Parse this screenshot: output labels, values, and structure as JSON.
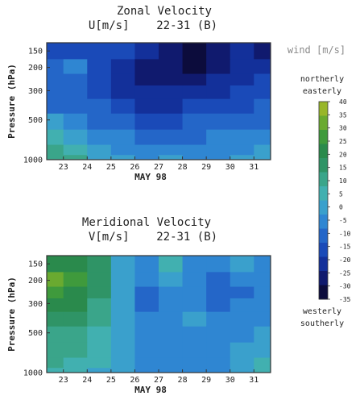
{
  "colors": {
    "scale": [
      "#0c0c3c",
      "#101a6e",
      "#13309a",
      "#1a4ab8",
      "#2466c8",
      "#2f86d2",
      "#3aa0cc",
      "#41b0b0",
      "#3aa58a",
      "#2f9466",
      "#2a8a4c",
      "#3f9a3c",
      "#6aaa30",
      "#98b62a"
    ],
    "border": "#333333",
    "contour": "#1a1a1a"
  },
  "legend": {
    "title": "wind [m/s]",
    "top_labels": [
      "northerly",
      "easterly"
    ],
    "bottom_labels": [
      "westerly",
      "southerly"
    ],
    "ticks": [
      "40",
      "35",
      "30",
      "25",
      "20",
      "15",
      "10",
      "5",
      "0",
      "-5",
      "-10",
      "-15",
      "-20",
      "-25",
      "-30",
      "-35"
    ]
  },
  "chart_data": [
    {
      "type": "heatmap",
      "title_line1": "Zonal Velocity",
      "title_line2": "U[m/s]    22-31 (B)",
      "xlabel": "MAY 98",
      "ylabel": "Pressure (hPa)",
      "x_ticks": [
        "23",
        "24",
        "25",
        "26",
        "27",
        "28",
        "29",
        "30",
        "31"
      ],
      "y_ticks": [
        "150",
        "200",
        "300",
        "500",
        "1000"
      ],
      "x_range": [
        22.3,
        31.7
      ],
      "y_scale": "log",
      "y_range": [
        130,
        1000
      ],
      "columns_x": [
        22.5,
        23.5,
        24.5,
        25.5,
        26.5,
        27.5,
        28.5,
        29.5,
        30.5,
        31.5
      ],
      "rows_hPa": [
        150,
        200,
        250,
        300,
        400,
        500,
        700,
        850,
        1000
      ],
      "values": [
        [
          -15,
          -15,
          -15,
          -15,
          -20,
          -25,
          -30,
          -25,
          -20,
          -25
        ],
        [
          -10,
          -5,
          -15,
          -20,
          -25,
          -25,
          -30,
          -25,
          -20,
          -20
        ],
        [
          -10,
          -10,
          -15,
          -20,
          -25,
          -25,
          -25,
          -20,
          -20,
          -15
        ],
        [
          -10,
          -10,
          -15,
          -20,
          -20,
          -20,
          -20,
          -20,
          -15,
          -15
        ],
        [
          -10,
          -10,
          -10,
          -15,
          -20,
          -20,
          -15,
          -15,
          -15,
          -10
        ],
        [
          0,
          -5,
          -10,
          -10,
          -15,
          -15,
          -10,
          -10,
          -10,
          -10
        ],
        [
          5,
          0,
          -5,
          -5,
          -10,
          -10,
          -10,
          -5,
          -5,
          -5
        ],
        [
          10,
          5,
          0,
          -5,
          -5,
          -5,
          -5,
          -5,
          -5,
          0
        ],
        [
          10,
          10,
          0,
          0,
          -5,
          0,
          -5,
          -5,
          0,
          0
        ]
      ]
    },
    {
      "type": "heatmap",
      "title_line1": "Meridional Velocity",
      "title_line2": "V[m/s]    22-31 (B)",
      "xlabel": "MAY 98",
      "ylabel": "Pressure (hPa)",
      "x_ticks": [
        "23",
        "24",
        "25",
        "26",
        "27",
        "28",
        "29",
        "30",
        "31"
      ],
      "y_ticks": [
        "150",
        "200",
        "300",
        "500",
        "1000"
      ],
      "x_range": [
        22.3,
        31.7
      ],
      "y_scale": "log",
      "y_range": [
        130,
        1000
      ],
      "columns_x": [
        22.5,
        23.5,
        24.5,
        25.5,
        26.5,
        27.5,
        28.5,
        29.5,
        30.5,
        31.5
      ],
      "rows_hPa": [
        150,
        200,
        250,
        300,
        400,
        500,
        700,
        850,
        1000
      ],
      "values": [
        [
          20,
          20,
          15,
          0,
          -5,
          5,
          -5,
          -5,
          0,
          -5
        ],
        [
          30,
          25,
          15,
          0,
          -5,
          0,
          -5,
          -10,
          -5,
          -5
        ],
        [
          25,
          20,
          15,
          0,
          -10,
          -5,
          -5,
          -10,
          -10,
          -5
        ],
        [
          20,
          20,
          10,
          0,
          -10,
          -5,
          -5,
          -10,
          -5,
          -5
        ],
        [
          15,
          15,
          10,
          0,
          -5,
          -5,
          0,
          -5,
          -5,
          -5
        ],
        [
          10,
          10,
          5,
          0,
          -5,
          -5,
          -5,
          -5,
          -5,
          0
        ],
        [
          10,
          10,
          5,
          0,
          -5,
          -5,
          -5,
          -5,
          0,
          0
        ],
        [
          10,
          5,
          5,
          0,
          -5,
          -5,
          -5,
          -5,
          0,
          5
        ],
        [
          5,
          5,
          0,
          0,
          -5,
          -5,
          -5,
          -5,
          0,
          5
        ]
      ]
    }
  ]
}
